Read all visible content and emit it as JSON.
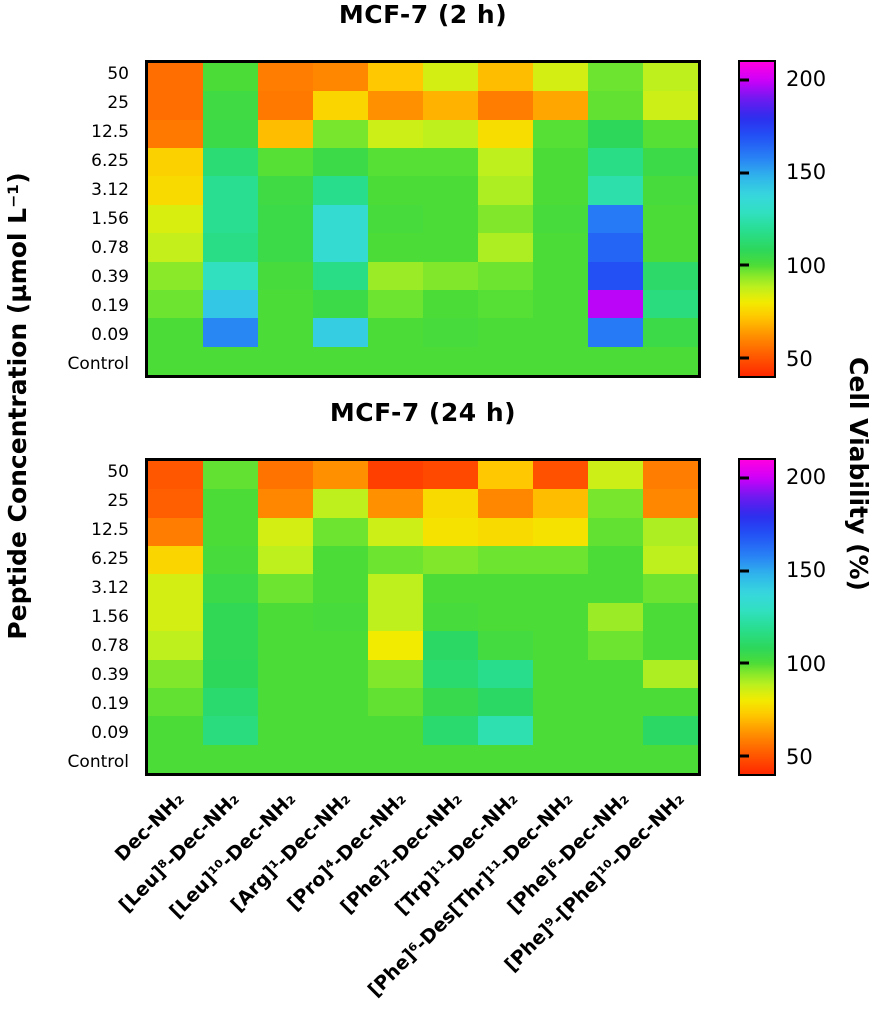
{
  "figure": {
    "y_axis_label": "Peptide Concentration (µmol L⁻¹)"
  },
  "colorbar": {
    "label": "Cell Viability (%)",
    "min": 40,
    "max": 210,
    "ticks": [
      50,
      100,
      150,
      200
    ]
  },
  "chart_data": [
    {
      "type": "heatmap",
      "title": "MCF-7 (2 h)",
      "ylabel": "Peptide Concentration (µmol L⁻¹)",
      "colorbar_label": "Cell Viability (%)",
      "value_units": "cell viability %",
      "color_scale": "rainbow: red(low ~40) -> orange -> yellow -> green(~100) -> cyan -> blue -> magenta(high ~210)",
      "rows": [
        "50",
        "25",
        "12.5",
        "6.25",
        "3.12",
        "1.56",
        "0.78",
        "0.39",
        "0.19",
        "0.09",
        "Control"
      ],
      "columns": [
        "Dec-NH₂",
        "[Leu]⁸-Dec-NH₂",
        "[Leu]¹⁰-Dec-NH₂",
        "[Arg]¹-Dec-NH₂",
        "[Pro]⁴-Dec-NH₂",
        "[Phe]²-Dec-NH₂",
        "[Trp]¹¹-Dec-NH₂",
        "[Phe]⁶-Des[Thr]¹¹-Dec-NH₂",
        "[Phe]⁶-Dec-NH₂",
        "[Phe]⁹-[Phe]¹⁰-Dec-NH₂"
      ],
      "values": [
        [
          55,
          100,
          58,
          60,
          72,
          85,
          70,
          85,
          97,
          88
        ],
        [
          55,
          103,
          57,
          75,
          62,
          68,
          58,
          66,
          98,
          86
        ],
        [
          57,
          104,
          70,
          96,
          86,
          88,
          77,
          99,
          108,
          99
        ],
        [
          74,
          113,
          99,
          104,
          99,
          99,
          88,
          100,
          117,
          104
        ],
        [
          76,
          119,
          103,
          118,
          100,
          100,
          90,
          100,
          124,
          101
        ],
        [
          84,
          119,
          104,
          134,
          101,
          100,
          95,
          101,
          160,
          100
        ],
        [
          87,
          117,
          104,
          134,
          100,
          100,
          90,
          100,
          165,
          100
        ],
        [
          94,
          128,
          101,
          117,
          92,
          95,
          97,
          100,
          170,
          111
        ],
        [
          97,
          143,
          100,
          104,
          97,
          100,
          99,
          100,
          198,
          115
        ],
        [
          100,
          157,
          100,
          141,
          100,
          101,
          100,
          100,
          160,
          104
        ],
        [
          100,
          100,
          100,
          100,
          100,
          100,
          100,
          100,
          100,
          100
        ]
      ]
    },
    {
      "type": "heatmap",
      "title": "MCF-7 (24 h)",
      "ylabel": "Peptide Concentration (µmol L⁻¹)",
      "colorbar_label": "Cell Viability (%)",
      "value_units": "cell viability %",
      "color_scale": "rainbow: red(low ~40) -> orange -> yellow -> green(~100) -> cyan -> blue -> magenta(high ~210)",
      "rows": [
        "50",
        "25",
        "12.5",
        "6.25",
        "3.12",
        "1.56",
        "0.78",
        "0.39",
        "0.19",
        "0.09",
        "Control"
      ],
      "columns": [
        "Dec-NH₂",
        "[Leu]⁸-Dec-NH₂",
        "[Leu]¹⁰-Dec-NH₂",
        "[Arg]¹-Dec-NH₂",
        "[Pro]⁴-Dec-NH₂",
        "[Phe]²-Dec-NH₂",
        "[Trp]¹¹-Dec-NH₂",
        "[Phe]⁶-Des[Thr]¹¹-Dec-NH₂",
        "[Phe]⁶-Dec-NH₂",
        "[Phe]⁹-[Phe]¹⁰-Dec-NH₂"
      ],
      "values": [
        [
          50,
          98,
          56,
          62,
          45,
          47,
          72,
          49,
          86,
          58
        ],
        [
          52,
          100,
          60,
          88,
          62,
          76,
          60,
          70,
          96,
          60
        ],
        [
          58,
          100,
          85,
          97,
          86,
          78,
          76,
          78,
          98,
          90
        ],
        [
          75,
          101,
          88,
          100,
          97,
          95,
          97,
          97,
          100,
          88
        ],
        [
          85,
          104,
          97,
          100,
          88,
          100,
          100,
          100,
          100,
          97
        ],
        [
          85,
          107,
          100,
          101,
          88,
          101,
          100,
          100,
          92,
          100
        ],
        [
          88,
          107,
          100,
          100,
          80,
          110,
          102,
          100,
          97,
          100
        ],
        [
          95,
          108,
          100,
          100,
          95,
          112,
          118,
          100,
          100,
          90
        ],
        [
          98,
          112,
          100,
          100,
          98,
          105,
          110,
          100,
          100,
          100
        ],
        [
          100,
          115,
          100,
          100,
          100,
          112,
          125,
          100,
          100,
          110
        ],
        [
          100,
          100,
          100,
          100,
          100,
          100,
          100,
          100,
          100,
          100
        ]
      ]
    }
  ]
}
